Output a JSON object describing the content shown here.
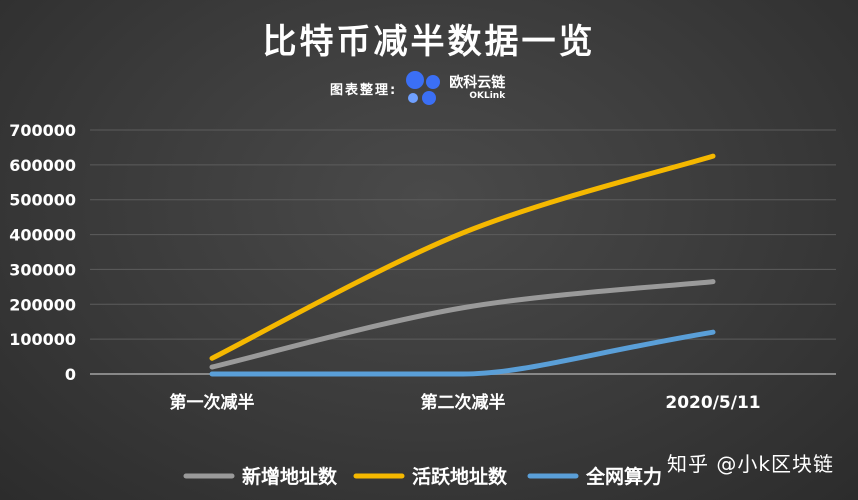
{
  "header": {
    "title": "比特币减半数据一览",
    "credit_label": "图表整理:",
    "brand_name": "欧科云链",
    "brand_sub": "OKLink"
  },
  "watermark": "知乎 @小k区块链",
  "colors": {
    "background": "#3a3a3a",
    "grid": "#5c5c5c",
    "text": "#ffffff"
  },
  "chart_data": {
    "type": "line",
    "categories": [
      "第一次减半",
      "第二次减半",
      "2020/5/11"
    ],
    "ylim": [
      0,
      700000
    ],
    "y_ticks": [
      0,
      100000,
      200000,
      300000,
      400000,
      500000,
      600000,
      700000
    ],
    "grid": true,
    "legend_position": "bottom",
    "series": [
      {
        "name": "新增地址数",
        "color": "#9a9a9a",
        "values": [
          20000,
          190000,
          265000
        ]
      },
      {
        "name": "活跃地址数",
        "color": "#f5b800",
        "values": [
          45000,
          405000,
          625000
        ]
      },
      {
        "name": "全网算力",
        "color": "#5a9fd8",
        "values": [
          0,
          0,
          120000
        ]
      }
    ]
  }
}
